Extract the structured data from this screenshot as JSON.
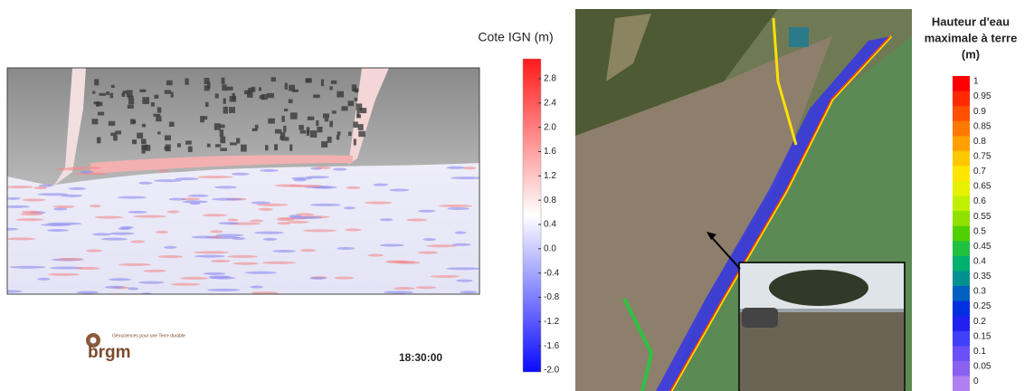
{
  "left_panel": {
    "colorbar": {
      "title": "Cote IGN (m)",
      "labels": [
        "2.8",
        "2.4",
        "2.0",
        "1.6",
        "1.2",
        "0.8",
        "0.4",
        "0.0",
        "-0.4",
        "-0.8",
        "-1.2",
        "-1.6",
        "-2.0"
      ]
    },
    "logo": {
      "name": "brgm",
      "tagline": "Géosciences pour une Terre durable"
    },
    "timestamp": "18:30:00"
  },
  "right_panel": {
    "colorbar": {
      "title_lines": [
        "Hauteur d'eau",
        "maximale à terre",
        "(m)"
      ],
      "labels": [
        "1",
        "0.95",
        "0.9",
        "0.85",
        "0.8",
        "0.75",
        "0.7",
        "0.65",
        "0.6",
        "0.55",
        "0.5",
        "0.45",
        "0.4",
        "0.35",
        "0.3",
        "0.25",
        "0.2",
        "0.15",
        "0.1",
        "0.05",
        "0"
      ],
      "colors": [
        "#ff0000",
        "#ff2a00",
        "#ff5000",
        "#ff7800",
        "#ffa000",
        "#ffc800",
        "#ffe600",
        "#e6f000",
        "#c0f000",
        "#90e000",
        "#50d000",
        "#20c040",
        "#00b070",
        "#009090",
        "#0060c0",
        "#0030e0",
        "#2020f0",
        "#4040f8",
        "#6a50f8",
        "#8a60f0",
        "#b080f0"
      ]
    }
  }
}
